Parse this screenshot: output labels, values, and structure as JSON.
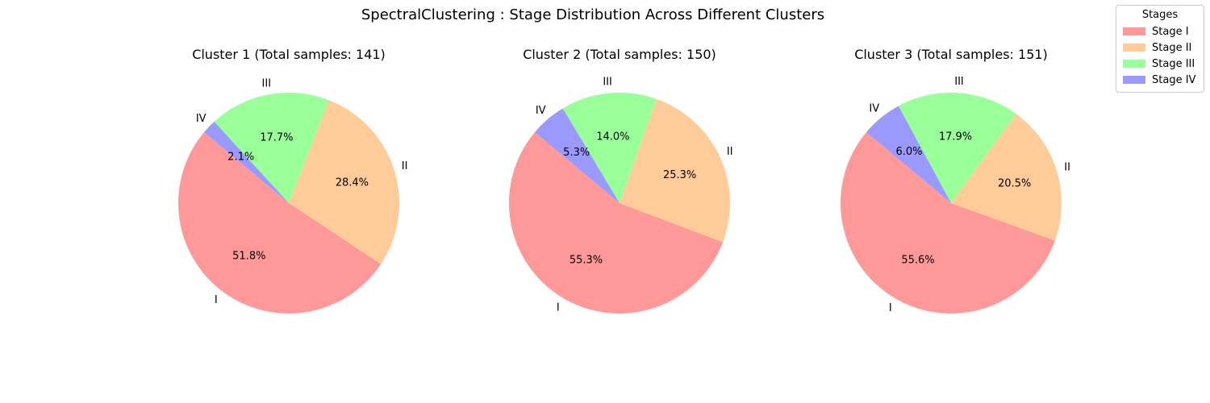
{
  "figure": {
    "suptitle": "SpectralClustering : Stage Distribution Across Different Clusters"
  },
  "legend": {
    "title": "Stages",
    "items": [
      {
        "label": "Stage I",
        "color": "#ff9999"
      },
      {
        "label": "Stage II",
        "color": "#ffcc99"
      },
      {
        "label": "Stage III",
        "color": "#99ff99"
      },
      {
        "label": "Stage IV",
        "color": "#9999ff"
      }
    ]
  },
  "chart_data": [
    {
      "type": "pie",
      "title": "Cluster 1 (Total samples: 141)",
      "labels": [
        "I",
        "II",
        "III",
        "IV"
      ],
      "values": [
        51.8,
        28.4,
        17.7,
        2.1
      ],
      "pct_labels": [
        "51.8%",
        "28.4%",
        "17.7%",
        "2.1%"
      ],
      "colors": [
        "#ff9999",
        "#ffcc99",
        "#99ff99",
        "#9999ff"
      ],
      "start_angle_deg": 140
    },
    {
      "type": "pie",
      "title": "Cluster 2 (Total samples: 150)",
      "labels": [
        "I",
        "II",
        "III",
        "IV"
      ],
      "values": [
        55.3,
        25.3,
        14.0,
        5.3
      ],
      "pct_labels": [
        "55.3%",
        "25.3%",
        "14.0%",
        "5.3%"
      ],
      "colors": [
        "#ff9999",
        "#ffcc99",
        "#99ff99",
        "#9999ff"
      ],
      "start_angle_deg": 140
    },
    {
      "type": "pie",
      "title": "Cluster 3 (Total samples: 151)",
      "labels": [
        "I",
        "II",
        "III",
        "IV"
      ],
      "values": [
        55.6,
        20.5,
        17.9,
        6.0
      ],
      "pct_labels": [
        "55.6%",
        "20.5%",
        "17.9%",
        "6.0%"
      ],
      "colors": [
        "#ff9999",
        "#ffcc99",
        "#99ff99",
        "#9999ff"
      ],
      "start_angle_deg": 140
    }
  ]
}
